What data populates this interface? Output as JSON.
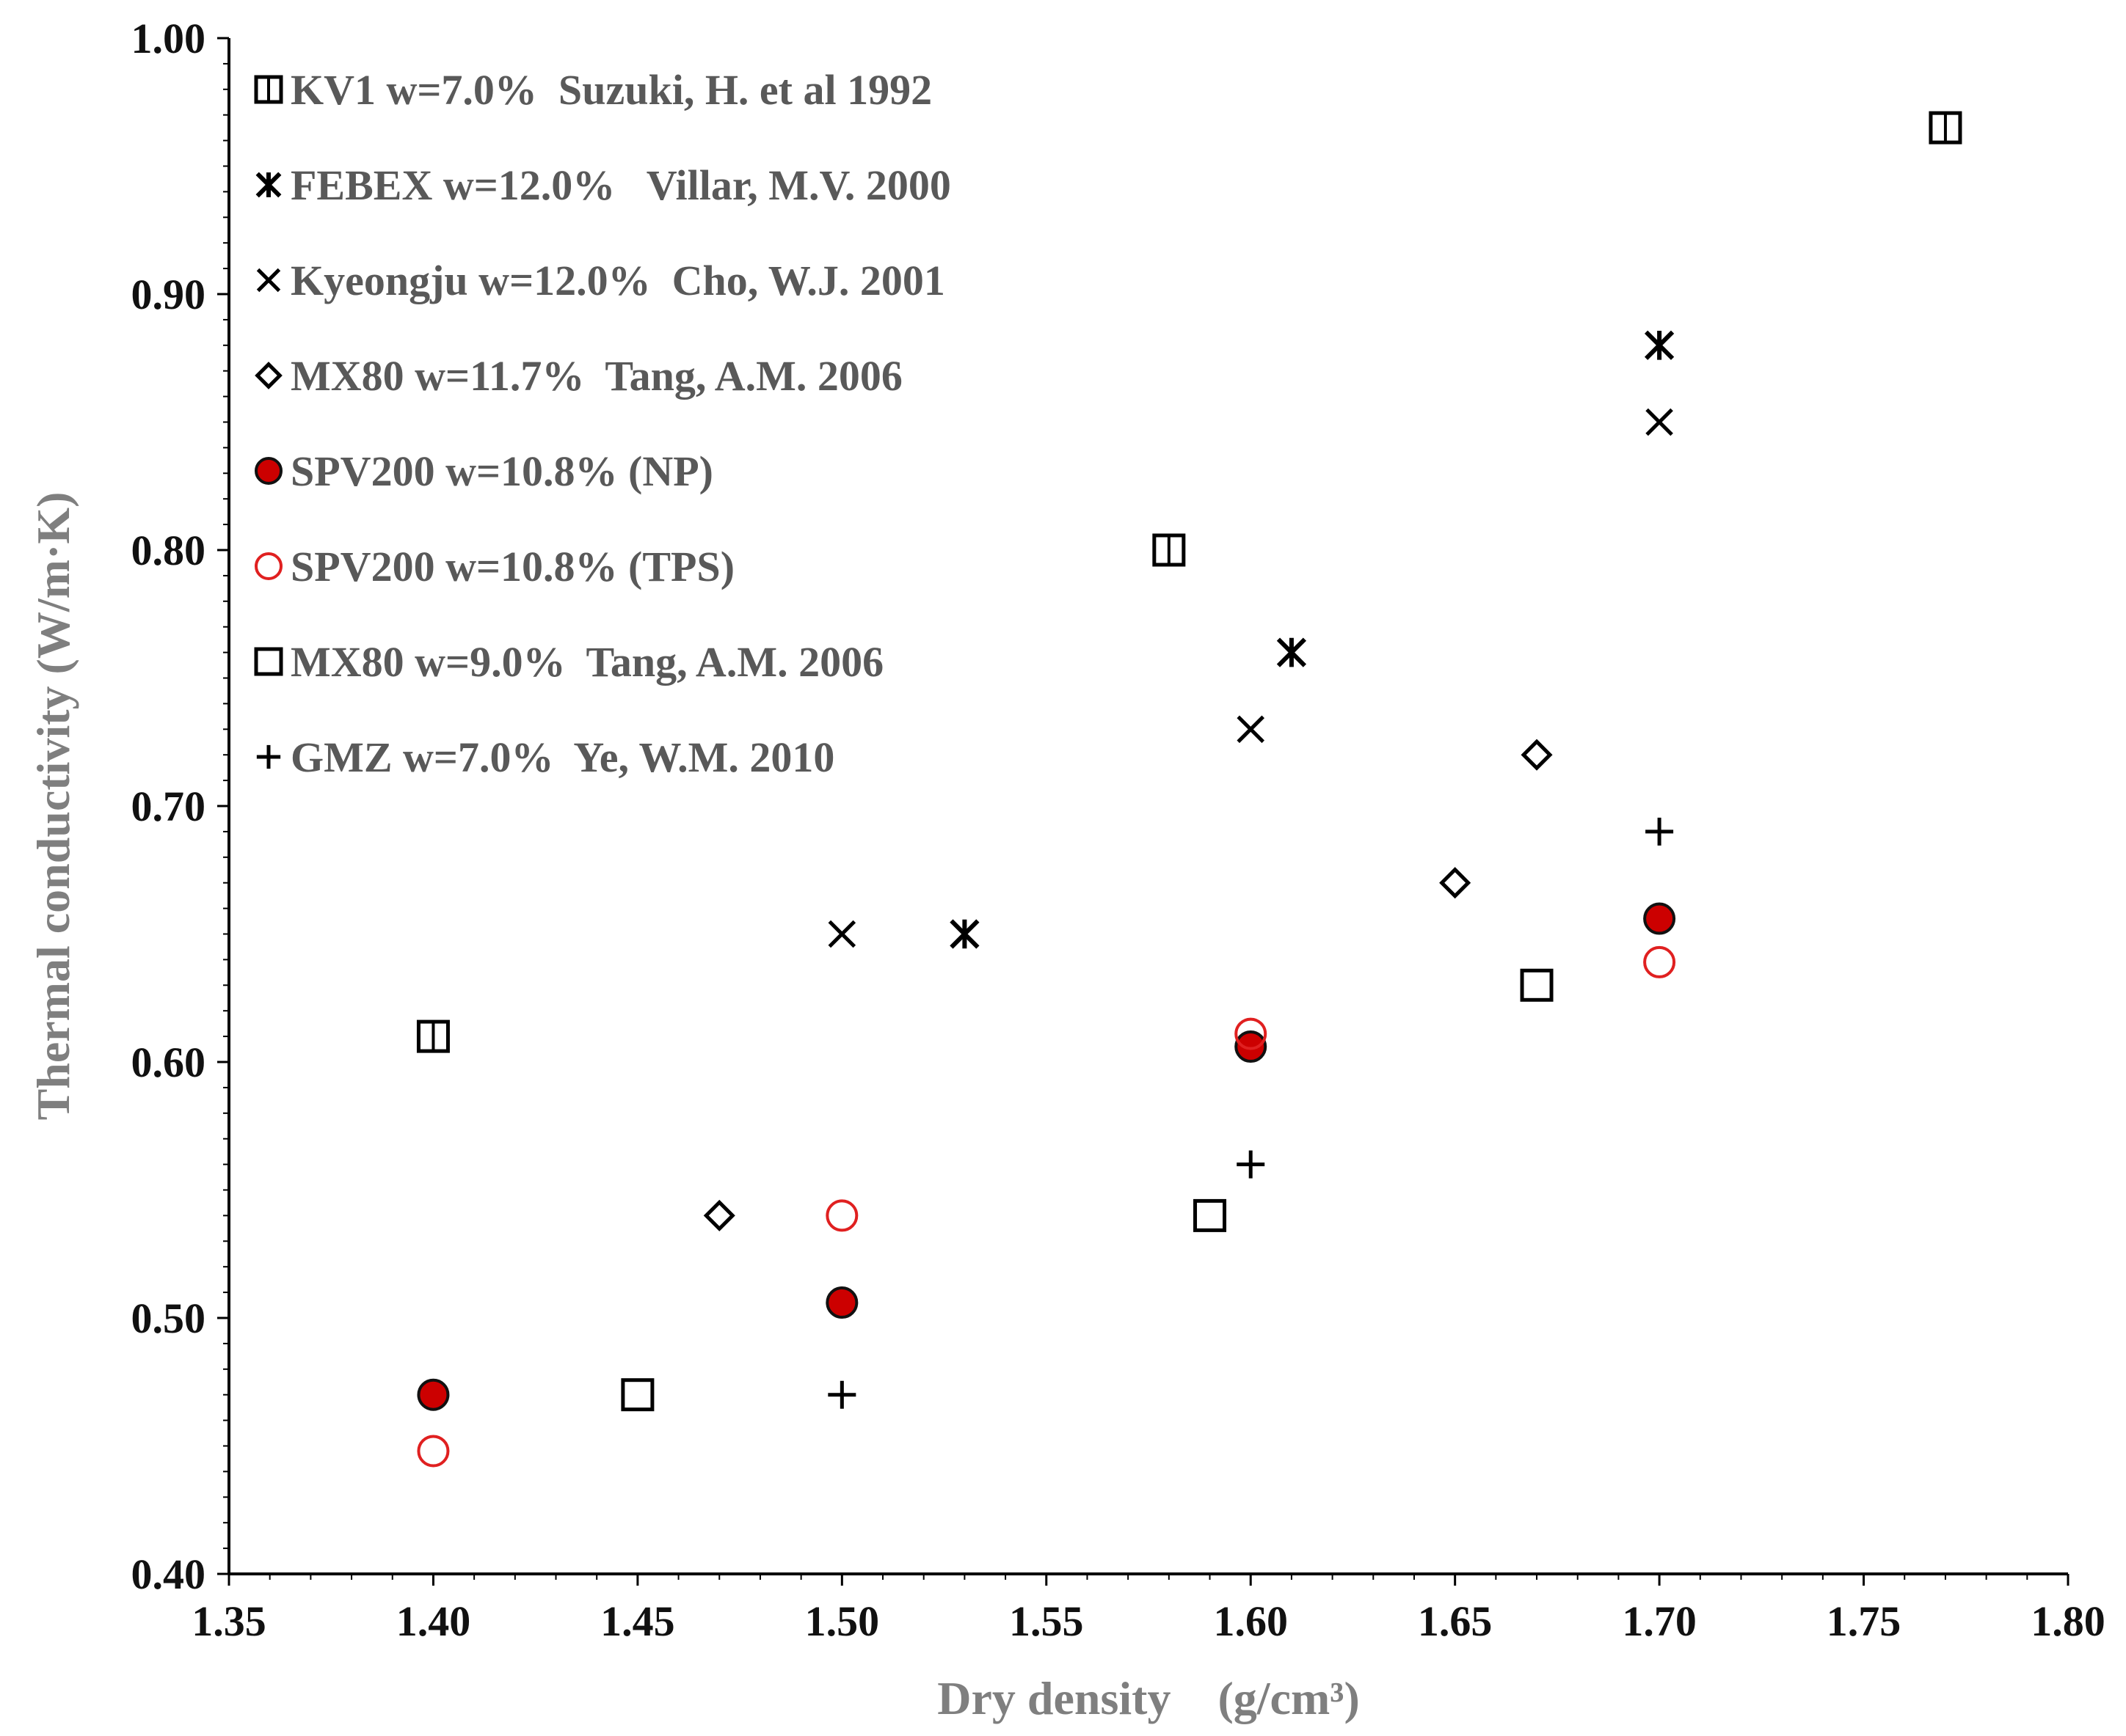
{
  "chart_data": {
    "type": "scatter",
    "title": "",
    "xlabel": "Dry density　(g/cm³)",
    "ylabel": "Thermal conductivity (W/m·K)",
    "xlim": [
      1.35,
      1.8
    ],
    "ylim": [
      0.4,
      1.0
    ],
    "xticks": [
      "1.35",
      "1.40",
      "1.45",
      "1.50",
      "1.55",
      "1.60",
      "1.65",
      "1.70",
      "1.75",
      "1.80"
    ],
    "yticks": [
      "0.40",
      "0.50",
      "0.60",
      "0.70",
      "0.80",
      "0.90",
      "1.00"
    ],
    "grid": false,
    "legend_position": "top-left",
    "series": [
      {
        "name": "KV1 w=7.0%  Suzuki, H. et al 1992",
        "marker": "square-split",
        "color": "#000000",
        "points": [
          [
            1.4,
            0.61
          ],
          [
            1.58,
            0.8
          ],
          [
            1.77,
            0.965
          ]
        ]
      },
      {
        "name": "FEBEX w=12.0%   Villar, M.V. 2000",
        "marker": "asterisk",
        "color": "#000000",
        "points": [
          [
            1.53,
            0.65
          ],
          [
            1.61,
            0.76
          ],
          [
            1.7,
            0.88
          ]
        ]
      },
      {
        "name": "Kyeongju w=12.0%  Cho, W.J. 2001",
        "marker": "x",
        "color": "#000000",
        "points": [
          [
            1.5,
            0.65
          ],
          [
            1.6,
            0.73
          ],
          [
            1.7,
            0.85
          ]
        ]
      },
      {
        "name": "MX80 w=11.7%  Tang, A.M. 2006",
        "marker": "diamond",
        "color": "#000000",
        "points": [
          [
            1.47,
            0.54
          ],
          [
            1.65,
            0.67
          ],
          [
            1.67,
            0.72
          ]
        ]
      },
      {
        "name": "SPV200 w=10.8% (NP)",
        "marker": "circle-filled",
        "color": "#cc0000",
        "points": [
          [
            1.4,
            0.47
          ],
          [
            1.5,
            0.506
          ],
          [
            1.6,
            0.606
          ],
          [
            1.7,
            0.656
          ]
        ]
      },
      {
        "name": "SPV200 w=10.8% (TPS)",
        "marker": "circle-open",
        "color": "#e02020",
        "points": [
          [
            1.4,
            0.448
          ],
          [
            1.5,
            0.54
          ],
          [
            1.6,
            0.611
          ],
          [
            1.7,
            0.639
          ]
        ]
      },
      {
        "name": "MX80 w=9.0%  Tang, A.M. 2006",
        "marker": "square",
        "color": "#000000",
        "points": [
          [
            1.45,
            0.47
          ],
          [
            1.59,
            0.54
          ],
          [
            1.67,
            0.63
          ]
        ]
      },
      {
        "name": "GMZ w=7.0%  Ye, W.M. 2010",
        "marker": "plus",
        "color": "#000000",
        "points": [
          [
            1.5,
            0.47
          ],
          [
            1.6,
            0.56
          ],
          [
            1.7,
            0.69
          ]
        ]
      }
    ]
  }
}
